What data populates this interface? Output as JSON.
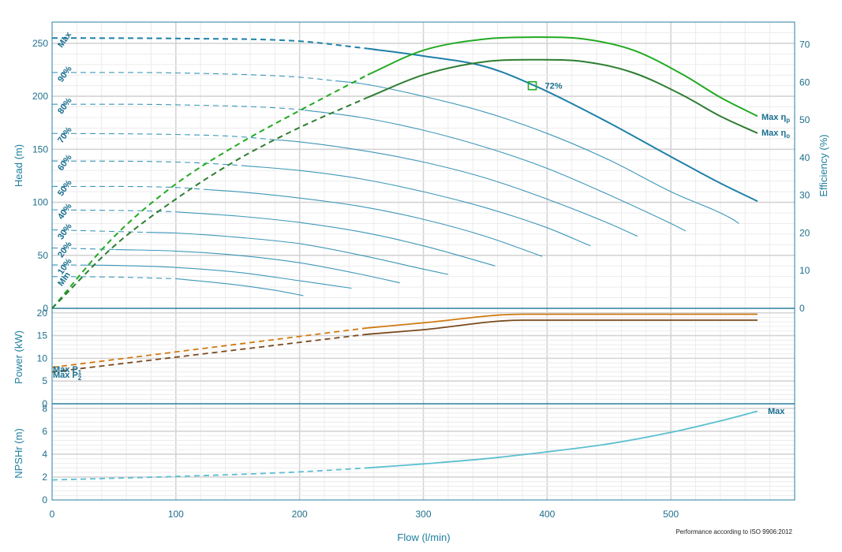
{
  "chart_data": [
    {
      "type": "line",
      "panel": "head_efficiency",
      "xlabel": "Flow (l/min)",
      "ylabel": "Head (m)",
      "y2label": "Efficiency (%)",
      "xlim": [
        0,
        600
      ],
      "ylim": [
        0,
        270
      ],
      "y2lim": [
        0,
        76
      ],
      "x_ticks": [
        "0",
        "100",
        "200",
        "300",
        "400",
        "500"
      ],
      "y_ticks": [
        "0",
        "50",
        "100",
        "150",
        "200",
        "250"
      ],
      "y2_ticks": [
        "0",
        "10",
        "20",
        "30",
        "40",
        "50",
        "60",
        "70"
      ],
      "grid": true,
      "head_series": [
        {
          "name": "Max",
          "solid_from": 255,
          "points": [
            [
              0,
              255
            ],
            [
              100,
              254.5
            ],
            [
              200,
              252
            ],
            [
              255,
              245
            ],
            [
              300,
              238
            ],
            [
              350,
              228
            ],
            [
              390,
              210
            ],
            [
              450,
              175
            ],
            [
              500,
              143
            ],
            [
              540,
              118
            ],
            [
              570,
              101
            ]
          ]
        },
        {
          "name": "90%",
          "solid_from": 229,
          "points": [
            [
              0,
              222.5
            ],
            [
              100,
              222
            ],
            [
              200,
              218
            ],
            [
              250,
              212
            ],
            [
              300,
              200
            ],
            [
              350,
              185
            ],
            [
              400,
              165
            ],
            [
              450,
              140
            ],
            [
              500,
              110
            ],
            [
              550,
              84
            ],
            [
              555,
              80
            ]
          ]
        },
        {
          "name": "80%",
          "solid_from": 204,
          "points": [
            [
              0,
              192.5
            ],
            [
              100,
              192
            ],
            [
              200,
              187.5
            ],
            [
              250,
              180
            ],
            [
              300,
              168
            ],
            [
              350,
              152
            ],
            [
              400,
              132
            ],
            [
              450,
              107
            ],
            [
              500,
              80
            ],
            [
              512,
              73
            ]
          ]
        },
        {
          "name": "70%",
          "solid_from": 178,
          "points": [
            [
              0,
              165
            ],
            [
              100,
              164
            ],
            [
              150,
              162
            ],
            [
              200,
              157
            ],
            [
              250,
              149
            ],
            [
              300,
              138
            ],
            [
              350,
              123
            ],
            [
              400,
              103
            ],
            [
              450,
              80
            ],
            [
              473,
              68
            ]
          ]
        },
        {
          "name": "60%",
          "solid_from": 153,
          "points": [
            [
              0,
              139
            ],
            [
              100,
              138
            ],
            [
              150,
              135
            ],
            [
              200,
              130
            ],
            [
              250,
              122
            ],
            [
              300,
              110
            ],
            [
              350,
              95
            ],
            [
              400,
              76
            ],
            [
              435,
              59
            ]
          ]
        },
        {
          "name": "50%",
          "solid_from": 127,
          "points": [
            [
              0,
              115
            ],
            [
              100,
              114
            ],
            [
              150,
              110
            ],
            [
              200,
              104
            ],
            [
              250,
              96
            ],
            [
              300,
              84
            ],
            [
              350,
              68
            ],
            [
              396,
              49
            ]
          ]
        },
        {
          "name": "40%",
          "solid_from": 102,
          "points": [
            [
              0,
              93
            ],
            [
              100,
              91
            ],
            [
              150,
              87
            ],
            [
              200,
              81
            ],
            [
              250,
              72
            ],
            [
              300,
              59
            ],
            [
              358,
              40
            ]
          ]
        },
        {
          "name": "30%",
          "solid_from": 76,
          "points": [
            [
              0,
              74
            ],
            [
              100,
              71
            ],
            [
              150,
              67
            ],
            [
              200,
              61
            ],
            [
              250,
              50
            ],
            [
              300,
              37
            ],
            [
              320,
              32
            ]
          ]
        },
        {
          "name": "20%",
          "solid_from": 51,
          "points": [
            [
              0,
              57
            ],
            [
              100,
              54
            ],
            [
              150,
              50
            ],
            [
              200,
              43
            ],
            [
              250,
              32
            ],
            [
              281,
              24
            ]
          ]
        },
        {
          "name": "10%",
          "solid_from": 25,
          "points": [
            [
              0,
              41
            ],
            [
              50,
              40.5
            ],
            [
              100,
              38.5
            ],
            [
              150,
              34
            ],
            [
              200,
              26
            ],
            [
              242,
              19
            ]
          ]
        },
        {
          "name": "Min",
          "solid_from": 100,
          "points": [
            [
              0,
              30
            ],
            [
              50,
              29.5
            ],
            [
              100,
              28
            ],
            [
              150,
              22
            ],
            [
              180,
              17
            ],
            [
              203,
              12
            ]
          ]
        }
      ],
      "efficiency_series": [
        {
          "name": "Max ηp",
          "color": "#22aa22",
          "solid_from": 255,
          "points": [
            [
              0,
              0
            ],
            [
              50,
              19
            ],
            [
              100,
              33
            ],
            [
              150,
              43.5
            ],
            [
              200,
              52.5
            ],
            [
              255,
              62
            ],
            [
              300,
              68.5
            ],
            [
              350,
              71.5
            ],
            [
              390,
              72
            ],
            [
              430,
              71.5
            ],
            [
              470,
              68.5
            ],
            [
              510,
              62
            ],
            [
              540,
              56
            ],
            [
              570,
              51
            ]
          ]
        },
        {
          "name": "Max ηo",
          "color": "#2e7d32",
          "solid_from": 255,
          "points": [
            [
              0,
              0
            ],
            [
              50,
              16.5
            ],
            [
              100,
              29
            ],
            [
              150,
              39.5
            ],
            [
              200,
              48
            ],
            [
              255,
              56
            ],
            [
              300,
              62
            ],
            [
              350,
              65.5
            ],
            [
              390,
              66
            ],
            [
              430,
              65.5
            ],
            [
              470,
              62.5
            ],
            [
              510,
              56.5
            ],
            [
              540,
              51
            ],
            [
              570,
              46.5
            ]
          ]
        }
      ],
      "annotations": [
        {
          "text": "72%",
          "x": 388,
          "y": 210
        }
      ]
    },
    {
      "type": "line",
      "panel": "power",
      "ylabel": "Power (kW)",
      "ylim": [
        0,
        21
      ],
      "y_ticks": [
        "0",
        "5",
        "10",
        "15",
        "20"
      ],
      "grid": true,
      "series": [
        {
          "name": "Max P1",
          "color": "#d07a10",
          "solid_from": 255,
          "points": [
            [
              0,
              8
            ],
            [
              255,
              16.7
            ],
            [
              300,
              17.8
            ],
            [
              380,
              19.7
            ],
            [
              570,
              19.7
            ]
          ]
        },
        {
          "name": "Max P2",
          "color": "#7a4a1e",
          "solid_from": 255,
          "points": [
            [
              0,
              7
            ],
            [
              255,
              15.3
            ],
            [
              300,
              16.3
            ],
            [
              380,
              18.4
            ],
            [
              570,
              18.4
            ]
          ]
        }
      ]
    },
    {
      "type": "line",
      "panel": "npsh",
      "ylabel": "NPSHr (m)",
      "ylim": [
        0,
        8.4
      ],
      "y_ticks": [
        "0",
        "2",
        "4",
        "6",
        "8"
      ],
      "grid": true,
      "series": [
        {
          "name": "Max",
          "color": "#5bbfd0",
          "solid_from": 255,
          "points": [
            [
              0,
              1.75
            ],
            [
              100,
              2.05
            ],
            [
              200,
              2.45
            ],
            [
              255,
              2.8
            ],
            [
              300,
              3.15
            ],
            [
              350,
              3.6
            ],
            [
              400,
              4.2
            ],
            [
              450,
              4.9
            ],
            [
              500,
              5.9
            ],
            [
              540,
              6.9
            ],
            [
              570,
              7.75
            ]
          ]
        }
      ]
    }
  ],
  "labels": {
    "max_eta_p_main": "Max  η",
    "max_eta_p_sub": "p",
    "max_eta_o_main": "Max  η",
    "max_eta_o_sub": "o",
    "max_p1_main": "Max P",
    "max_p1_sub": "1",
    "max_p2_main": "Max P",
    "max_p2_sub": "2",
    "npsh_max": "Max",
    "footnote": "Performance according to ISO 9906:2012"
  }
}
